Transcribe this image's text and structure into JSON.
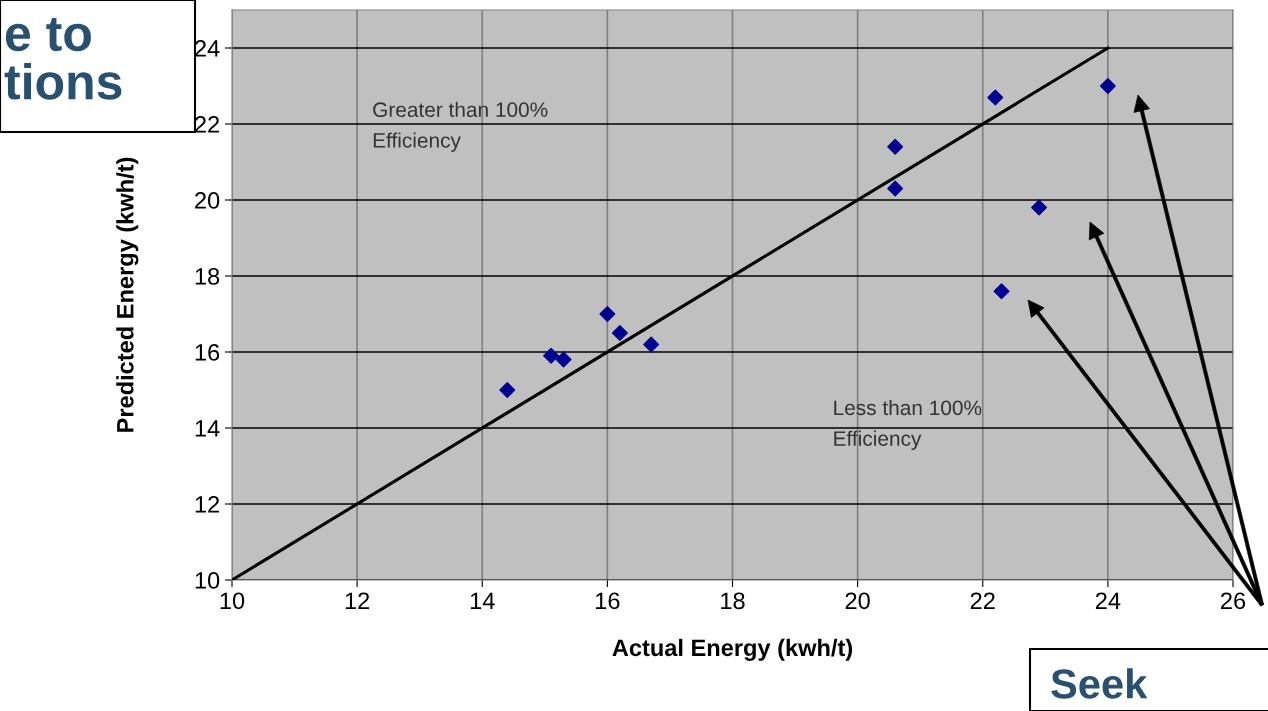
{
  "chart_data": {
    "type": "scatter",
    "xlabel": "Actual Energy (kwh/t)",
    "ylabel": "Predicted Energy (kwh/t)",
    "xlim": [
      10,
      26
    ],
    "xticks": [
      10,
      12,
      14,
      16,
      18,
      20,
      22,
      24,
      26
    ],
    "ylim": [
      10,
      25
    ],
    "yticks": [
      10,
      12,
      14,
      16,
      18,
      20,
      22,
      24
    ],
    "grid": true,
    "marker": "diamond",
    "series": [
      {
        "color": "#000090",
        "x": [
          14.4,
          15.1,
          15.3,
          16.0,
          16.2,
          16.7,
          20.6,
          20.6,
          22.2,
          22.9,
          22.3,
          24.0
        ],
        "values": [
          15.0,
          15.9,
          15.8,
          17.0,
          16.5,
          16.2,
          21.4,
          20.3,
          22.7,
          19.8,
          17.6,
          23.0
        ]
      },
      {
        "type": "line",
        "color": "#000000",
        "marker": "none",
        "x": [
          10,
          24
        ],
        "values": [
          10,
          24
        ]
      }
    ],
    "annotations": [
      "Greater than 100%\nEfficiency",
      "Less than 100%\nEfficiency",
      "e to\ntions",
      "Seek"
    ]
  }
}
